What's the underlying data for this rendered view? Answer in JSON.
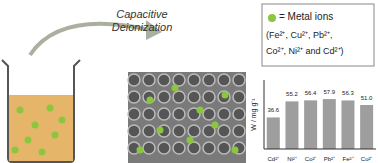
{
  "diagram": {
    "title": "Capacitive Deionization",
    "legend_box": {
      "label": "= Metal ions",
      "lines": [
        "(Fe²⁺, Cu²⁺, Pb²⁺,",
        "Co²⁺, Ni²⁺ and Cd²⁺)"
      ]
    }
  },
  "chart_data": {
    "type": "bar",
    "y_label": "W / mg g⁻¹",
    "categories": [
      "Cd²⁺",
      "Ni²⁺",
      "Co²⁺",
      "Pb²⁺",
      "Fe²⁺",
      "Cu²⁺"
    ],
    "values": [
      36.6,
      55.2,
      56.4,
      57.9,
      56.3,
      51.0
    ],
    "value_labels": [
      "36.6",
      "55.2",
      "56.4",
      "57.9",
      "56.3",
      "51.0"
    ],
    "color": "#9e9e9e",
    "ylim": [
      0,
      80
    ],
    "data_labels": true,
    "tick_labels": "x",
    "grid": false
  }
}
